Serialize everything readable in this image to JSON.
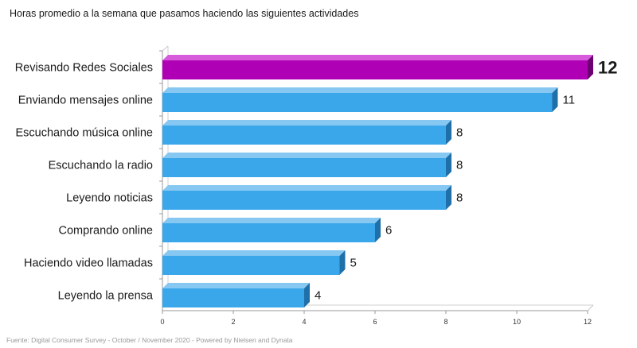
{
  "chart_data": {
    "type": "bar",
    "orientation": "horizontal",
    "title": "Horas promedio a la semana que pasamos haciendo las siguientes actividades",
    "source": "Fuente: Digital Consumer Survey - October / November 2020 - Powered by Nielsen and Dynata",
    "categories": [
      "Revisando Redes Sociales",
      "Enviando mensajes online",
      "Escuchando música online",
      "Escuchando la radio",
      "Leyendo noticias",
      "Comprando online",
      "Haciendo video llamadas",
      "Leyendo la prensa"
    ],
    "values": [
      12,
      11,
      8,
      8,
      8,
      6,
      5,
      4
    ],
    "value_labels": [
      "12",
      "11",
      "8",
      "8",
      "8",
      "6",
      "5",
      "4"
    ],
    "highlight_index": 0,
    "xlim": [
      0,
      12
    ],
    "xticks": [
      "0",
      "2",
      "4",
      "6",
      "8",
      "10",
      "12"
    ],
    "grid": false,
    "colors": {
      "bar": "#3aa7ea",
      "bar_side": "#1f6fa8",
      "bar_top": "#86c8f2",
      "highlight": "#b000b5",
      "highlight_side": "#6d0072",
      "highlight_top": "#d75cdb",
      "axis": "#9a9a9a"
    }
  }
}
